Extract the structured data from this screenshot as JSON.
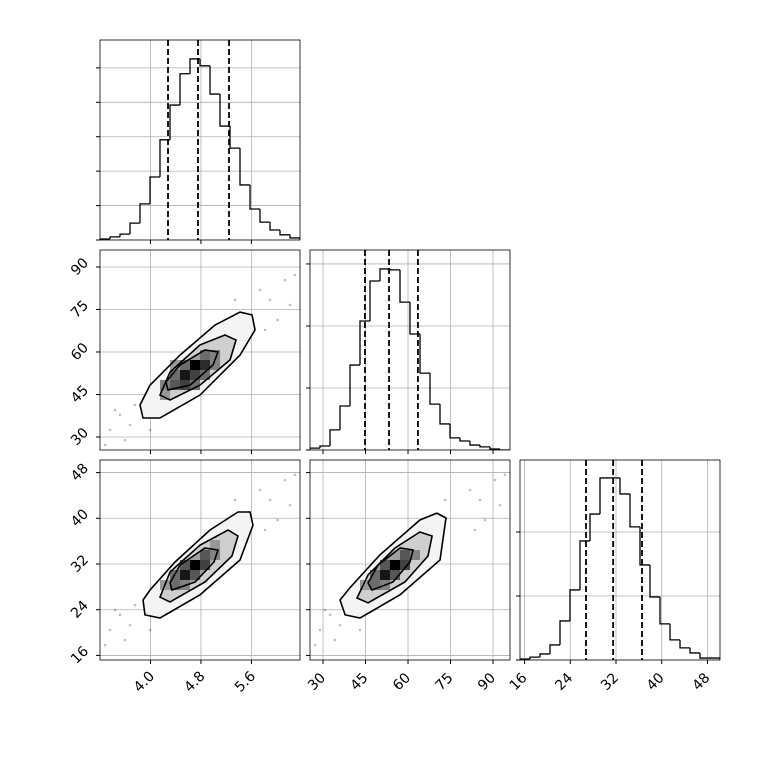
{
  "chart_data": [
    {
      "type": "histogram",
      "color": "#000000",
      "grid": true,
      "bins": [
        3.2,
        3.359,
        3.517,
        3.676,
        3.834,
        3.993,
        4.151,
        4.31,
        4.468,
        4.627,
        4.785,
        4.944,
        5.102,
        5.261,
        5.419,
        5.578,
        5.736,
        5.895,
        6.053,
        6.212,
        6.37
      ],
      "values": [
        3,
        9,
        17,
        49,
        105,
        183,
        291,
        392,
        483,
        526,
        506,
        424,
        331,
        267,
        160,
        90,
        52,
        29,
        15,
        6
      ],
      "quantiles": [
        4.278,
        4.753,
        5.245
      ],
      "xlim": [
        3.2,
        6.37
      ],
      "ylim": [
        0,
        581
      ],
      "xticks": [
        4,
        4.8,
        5.6
      ],
      "yticks": [
        0,
        100,
        200,
        300,
        400,
        500
      ],
      "xtick_labels": false,
      "ytick_labels": false
    },
    {
      "type": "density",
      "color": "#000000",
      "grid": true,
      "x": [
        3.359,
        3.596,
        3.517,
        5.895,
        6.132,
        6.212,
        3.438,
        5.736,
        6.014,
        3.676,
        5.34,
        3.993,
        5.816,
        3.279,
        6.29,
        3.755
      ],
      "y": [
        32.5,
        28.9,
        37.8,
        78.4,
        85.4,
        76.6,
        39.5,
        81.9,
        71.3,
        34.2,
        78.4,
        32.5,
        67.8,
        27.2,
        87.2,
        41.3
      ],
      "contours": [
        {
          "x": [
            3.834,
            3.882,
            4.151,
            4.785,
            5.419,
            5.657,
            5.609,
            5.419,
            5.023,
            4.468,
            3.993
          ],
          "y": [
            41.3,
            36.7,
            36.7,
            44.8,
            58.9,
            67.8,
            73.1,
            74.1,
            69.5,
            58.9,
            48.3
          ]
        },
        {
          "x": [
            4.151,
            4.31,
            4.785,
            5.261,
            5.356,
            5.181,
            4.785,
            4.31
          ],
          "y": [
            44.8,
            43.05,
            48.3,
            57.2,
            64.2,
            66.0,
            62.5,
            52.9
          ]
        },
        {
          "x": [
            4.278,
            4.627,
            4.991,
            5.07,
            4.864,
            4.468,
            4.246
          ],
          "y": [
            46.6,
            48.3,
            55.4,
            60.0,
            60.7,
            55.4,
            49.4
          ]
        }
      ],
      "cells": {
        "x": [
          4.627,
          4.468,
          4.627,
          4.785,
          4.31,
          4.31,
          4.468,
          4.785,
          4.944,
          4.151,
          4.627,
          4.468,
          4.785,
          4.944,
          4.31,
          4.151
        ],
        "y": [
          53.64,
          50.11,
          50.11,
          53.64,
          50.11,
          46.58,
          46.58,
          57.17,
          57.17,
          43.05,
          46.58,
          53.64,
          50.11,
          53.64,
          53.64,
          46.58
        ],
        "values": [
          1,
          0.9,
          0.7,
          0.8,
          0.5,
          0.6,
          0.7,
          0.5,
          0.4,
          0.3,
          0.5,
          0.5,
          0.5,
          0.4,
          0.3,
          0.4
        ]
      },
      "xlim": [
        3.2,
        6.37
      ],
      "ylim": [
        25.4,
        96
      ],
      "xticks": [
        4,
        4.8,
        5.6
      ],
      "yticks": [
        30,
        45,
        60,
        75,
        90
      ],
      "xtick_labels": false,
      "ytick_labels": true
    },
    {
      "type": "histogram",
      "color": "#000000",
      "grid": true,
      "bins": [
        25.4,
        28.93,
        32.46,
        35.99,
        39.52,
        43.05,
        46.58,
        50.11,
        53.64,
        57.17,
        60.7,
        64.23,
        67.76,
        71.29,
        74.82,
        78.35,
        81.88,
        85.41,
        88.94,
        92.47,
        96
      ],
      "values": [
        6,
        13,
        65,
        142,
        274,
        416,
        545,
        584,
        581,
        477,
        374,
        248,
        148,
        84,
        39,
        29,
        16,
        10,
        3,
        0
      ],
      "quantiles": [
        44.8,
        53.3,
        63.5
      ],
      "xlim": [
        25.4,
        96
      ],
      "ylim": [
        0,
        645
      ],
      "xticks": [
        30,
        45,
        60,
        75,
        90
      ],
      "yticks": [
        0,
        200,
        400,
        600
      ],
      "xtick_labels": false,
      "ytick_labels": false
    },
    {
      "type": "density",
      "color": "#000000",
      "grid": true,
      "x": [
        3.359,
        3.596,
        3.517,
        5.895,
        6.132,
        6.212,
        3.438,
        5.736,
        6.014,
        3.676,
        5.34,
        3.993,
        5.816,
        3.279,
        6.29,
        3.755
      ],
      "y": [
        20.45,
        18.7,
        23.1,
        43.2,
        46.7,
        42.3,
        23.95,
        44.95,
        39.7,
        21.3,
        43.2,
        20.45,
        37.95,
        17.8,
        47.6,
        24.8
      ],
      "contours": [
        {
          "x": [
            3.882,
            3.913,
            4.151,
            4.785,
            5.419,
            5.625,
            5.578,
            5.387,
            4.944,
            4.389,
            3.993
          ],
          "y": [
            25.7,
            23.1,
            22.55,
            26.6,
            32.7,
            38.8,
            41.1,
            41.1,
            37.95,
            32.35,
            27.45
          ]
        },
        {
          "x": [
            4.151,
            4.31,
            4.864,
            5.292,
            5.387,
            5.229,
            4.785,
            4.31
          ],
          "y": [
            26.2,
            25.35,
            28.85,
            33.4,
            36.9,
            37.95,
            35.3,
            30.6
          ]
        },
        {
          "x": [
            4.341,
            4.706,
            5.007,
            5.07,
            4.864,
            4.468,
            4.31
          ],
          "y": [
            27.45,
            28.85,
            32.35,
            34.45,
            34.8,
            31.8,
            28.7
          ]
        }
      ],
      "cells": {
        "x": [
          4.627,
          4.468,
          4.785,
          4.627,
          4.31,
          4.468,
          4.785,
          4.944,
          4.31,
          4.151,
          4.944,
          4.468
        ],
        "y": [
          30.95,
          29.2,
          30.95,
          29.2,
          29.2,
          30.95,
          32.7,
          32.7,
          27.45,
          27.45,
          34.45,
          27.45
        ],
        "values": [
          1,
          0.9,
          0.7,
          0.6,
          0.5,
          0.6,
          0.6,
          0.4,
          0.5,
          0.3,
          0.3,
          0.4
        ]
      },
      "xlim": [
        3.2,
        6.37
      ],
      "ylim": [
        15.2,
        50.2
      ],
      "xticks": [
        {
          "value": 4,
          "label": "4.0"
        },
        4.8,
        5.6
      ],
      "yticks": [
        16,
        24,
        32,
        40,
        48
      ],
      "xtick_labels": true,
      "ytick_labels": true
    },
    {
      "type": "density",
      "color": "#000000",
      "grid": true,
      "x": [
        28.9,
        34.2,
        32.5,
        85.4,
        90.7,
        92.5,
        30.7,
        81.9,
        87.2,
        36.0,
        73.1,
        43.05,
        83.6,
        27.2,
        94.2,
        37.8
      ],
      "y": [
        20.45,
        18.7,
        23.1,
        43.2,
        46.7,
        42.3,
        23.95,
        44.95,
        39.7,
        21.3,
        43.2,
        20.45,
        37.95,
        17.8,
        47.6,
        24.8
      ],
      "contours": [
        {
          "x": [
            36.0,
            37.8,
            43.05,
            57.17,
            71.3,
            73.4,
            70.2,
            64.2,
            50.1,
            39.5
          ],
          "y": [
            25.7,
            23.1,
            22.55,
            26.6,
            32.7,
            40.05,
            40.9,
            39.7,
            33.6,
            27.85
          ]
        },
        {
          "x": [
            42.0,
            45.9,
            58.9,
            67.05,
            68.5,
            64.2,
            55.4,
            45.9
          ],
          "y": [
            26.05,
            25.2,
            28.85,
            33.4,
            36.9,
            37.6,
            34.8,
            30.1
          ]
        },
        {
          "x": [
            47.3,
            54.7,
            60.7,
            61.8,
            57.2,
            49.4,
            45.9
          ],
          "y": [
            27.45,
            28.85,
            32.35,
            34.45,
            34.8,
            31.8,
            28.7
          ]
        }
      ],
      "cells": {
        "x": [
          53.64,
          50.11,
          57.17,
          53.64,
          57.17,
          46.58,
          50.11,
          46.58,
          60.7,
          43.05,
          50.11
        ],
        "y": [
          30.95,
          29.2,
          32.7,
          29.2,
          30.95,
          29.2,
          30.95,
          27.45,
          32.7,
          27.45,
          27.45
        ],
        "values": [
          1,
          0.9,
          0.6,
          0.6,
          0.7,
          0.5,
          0.6,
          0.5,
          0.4,
          0.3,
          0.4
        ]
      },
      "xlim": [
        25.4,
        96
      ],
      "ylim": [
        15.2,
        50.2
      ],
      "xticks": [
        30,
        45,
        60,
        75,
        90
      ],
      "yticks": [
        16,
        24,
        32,
        40,
        48
      ],
      "xtick_labels": true,
      "ytick_labels": false
    },
    {
      "type": "histogram",
      "color": "#000000",
      "grid": true,
      "bins": [
        15.2,
        16.95,
        18.7,
        20.45,
        22.2,
        23.95,
        25.7,
        27.45,
        29.2,
        30.95,
        32.7,
        34.45,
        36.2,
        37.95,
        39.7,
        41.45,
        43.2,
        44.95,
        46.7,
        48.45,
        50.2
      ],
      "values": [
        3,
        9,
        19,
        47,
        122,
        219,
        372,
        456,
        569,
        569,
        519,
        416,
        297,
        197,
        113,
        63,
        38,
        22,
        6,
        6
      ],
      "quantiles": [
        26.75,
        31.5,
        36.55
      ],
      "xlim": [
        15.2,
        50.2
      ],
      "ylim": [
        0,
        625
      ],
      "xticks": [
        16,
        24,
        32,
        40,
        48
      ],
      "yticks": [
        0,
        200,
        400
      ],
      "xtick_labels": true,
      "ytick_labels": false
    }
  ]
}
